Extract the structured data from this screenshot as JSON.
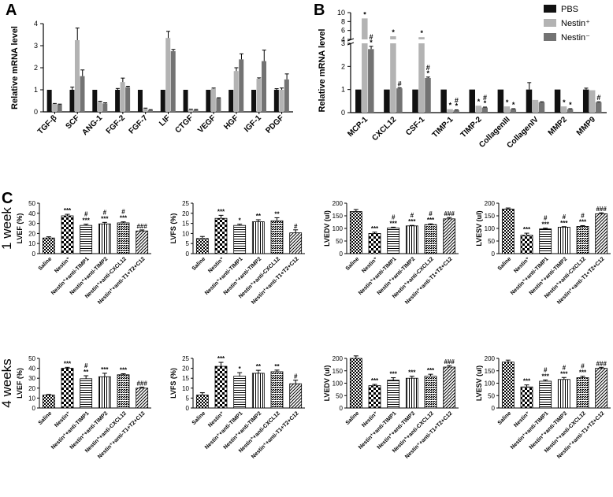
{
  "chart_data": [
    {
      "id": "A",
      "type": "bar",
      "panel_label": "A",
      "ylabel": "Relative mRNA level",
      "ylim": [
        0,
        4
      ],
      "yticks": [
        "0",
        "1",
        "2",
        "3",
        "4"
      ],
      "categories": [
        "TGF-β",
        "SCF",
        "ANG-1",
        "FGF-2",
        "FGF-7",
        "LIF",
        "CTGF",
        "VEGF",
        "HGF",
        "IGF-1",
        "PDGF"
      ],
      "series": [
        {
          "name": "PBS",
          "color": "#111111",
          "values": [
            1,
            1,
            1,
            1,
            1,
            1,
            1,
            1,
            1,
            1,
            1
          ],
          "errors": [
            0,
            0.12,
            0,
            0.06,
            0,
            0,
            0,
            0,
            0,
            0,
            0.05
          ]
        },
        {
          "name": "Nestin+",
          "color": "#b3b3b3",
          "values": [
            0.36,
            3.25,
            0.45,
            1.35,
            0.15,
            3.35,
            0.1,
            1.05,
            1.85,
            1.5,
            1.0
          ],
          "errors": [
            0.02,
            0.55,
            0.03,
            0.18,
            0.02,
            0.3,
            0.02,
            0.03,
            0.15,
            0.04,
            0.08
          ]
        },
        {
          "name": "Nestin−",
          "color": "#737373",
          "values": [
            0.33,
            1.62,
            0.38,
            1.12,
            0.08,
            2.75,
            0.09,
            0.62,
            2.38,
            2.3,
            1.47
          ],
          "errors": [
            0.02,
            0.28,
            0.03,
            0.04,
            0.02,
            0.08,
            0.02,
            0.02,
            0.25,
            0.5,
            0.25
          ]
        }
      ]
    },
    {
      "id": "B",
      "type": "bar",
      "panel_label": "B",
      "ylabel": "Relative mRNA level",
      "yticks_low": [
        "0",
        "1",
        "2",
        "3"
      ],
      "yticks_high": [
        "4",
        "6",
        "8",
        "10"
      ],
      "axis_break": true,
      "categories": [
        "MCP-1",
        "CXCL12",
        "CSF-1",
        "TIMP-1",
        "TIMP-2",
        "CollagenIII",
        "CollagenIV",
        "MMP2",
        "MMP9"
      ],
      "legend": [
        "PBS",
        "Nestin⁺",
        "Nestin⁻"
      ],
      "series": [
        {
          "name": "PBS",
          "color": "#111111",
          "values": [
            1,
            1,
            1,
            1,
            1,
            1,
            1,
            1,
            1
          ],
          "errors": [
            0,
            0,
            0,
            0,
            0,
            0,
            0.3,
            0,
            0.06
          ]
        },
        {
          "name": "Nestin+",
          "color": "#b3b3b3",
          "values": [
            8.7,
            4.7,
            4.5,
            0.15,
            0.3,
            0.27,
            0.55,
            0.27,
            0.97
          ]
        },
        {
          "name": "Nestin−",
          "color": "#737373",
          "values": [
            2.75,
            1.05,
            1.5,
            0.1,
            0.22,
            0.15,
            0.45,
            0.15,
            0.45
          ],
          "errors": [
            0.12,
            0.02,
            0.04,
            0.02,
            0.02,
            0.02,
            0.02,
            0.02,
            0.02
          ]
        }
      ],
      "annotations": [
        {
          "cat": 0,
          "series": 1,
          "marks": [
            "*"
          ]
        },
        {
          "cat": 0,
          "series": 2,
          "marks": [
            "#",
            "*"
          ]
        },
        {
          "cat": 1,
          "series": 1,
          "marks": [
            "*"
          ]
        },
        {
          "cat": 1,
          "series": 2,
          "marks": [
            "#"
          ]
        },
        {
          "cat": 2,
          "series": 1,
          "marks": [
            "*"
          ]
        },
        {
          "cat": 2,
          "series": 2,
          "marks": [
            "#",
            "*"
          ]
        },
        {
          "cat": 3,
          "series": 1,
          "marks": [
            "*"
          ]
        },
        {
          "cat": 3,
          "series": 2,
          "marks": [
            "#",
            "*"
          ]
        },
        {
          "cat": 4,
          "series": 1,
          "marks": [
            "*"
          ]
        },
        {
          "cat": 4,
          "series": 2,
          "marks": [
            "#",
            "*"
          ]
        },
        {
          "cat": 5,
          "series": 1,
          "marks": [
            "*"
          ]
        },
        {
          "cat": 5,
          "series": 2,
          "marks": [
            "*"
          ]
        },
        {
          "cat": 7,
          "series": 1,
          "marks": [
            "*"
          ]
        },
        {
          "cat": 7,
          "series": 2,
          "marks": [
            "*"
          ]
        },
        {
          "cat": 8,
          "series": 2,
          "marks": [
            "#"
          ]
        }
      ]
    }
  ],
  "panelC": {
    "label": "C",
    "rows": [
      "1 week",
      "4 weeks"
    ],
    "groups": [
      "Saline",
      "Nestin⁺",
      "Nestin⁺+anti-TIMP1",
      "Nestin⁺+anti-TIMP2",
      "Nestin⁺+anti-CXCL12",
      "Nestin⁺+anti-T1+T2+C12"
    ],
    "charts": [
      {
        "row": 0,
        "ylabel": "LVEF (%)",
        "yticks": [
          "0",
          "10",
          "20",
          "30",
          "40",
          "50"
        ],
        "ymax": 50,
        "values": [
          15.5,
          37.5,
          28,
          29.5,
          30.5,
          22.5
        ],
        "errors": [
          1.2,
          1.5,
          1.2,
          1.5,
          1.0,
          1.0
        ],
        "sig": [
          [],
          [
            "***"
          ],
          [
            "#",
            "***"
          ],
          [
            "#",
            "***"
          ],
          [
            "#",
            "***"
          ],
          [
            "###"
          ]
        ]
      },
      {
        "row": 0,
        "ylabel": "LVFS (%)",
        "yticks": [
          "0",
          "5",
          "10",
          "15",
          "20",
          "25"
        ],
        "ymax": 25,
        "values": [
          7.5,
          17.5,
          14,
          15.8,
          16.3,
          10.3
        ],
        "errors": [
          1.0,
          1.5,
          0.6,
          1.0,
          1.5,
          1.5
        ],
        "sig": [
          [],
          [
            "***"
          ],
          [
            "*"
          ],
          [
            "**"
          ],
          [
            "**"
          ],
          [
            "#"
          ]
        ]
      },
      {
        "row": 0,
        "ylabel": "LVEDV (ul)",
        "yticks": [
          "0",
          "50",
          "100",
          "150",
          "200"
        ],
        "ymax": 200,
        "values": [
          167,
          80,
          102,
          110,
          115,
          138
        ],
        "errors": [
          8,
          5,
          3,
          2,
          3,
          5
        ],
        "sig": [
          [],
          [
            "***"
          ],
          [
            "#",
            "***"
          ],
          [
            "#",
            "***"
          ],
          [
            "#",
            "***"
          ],
          [
            "###"
          ]
        ]
      },
      {
        "row": 0,
        "ylabel": "LVESV (ul)",
        "yticks": [
          "0",
          "50",
          "100",
          "150",
          "200"
        ],
        "ymax": 200,
        "values": [
          177,
          73,
          98,
          105,
          108,
          158
        ],
        "errors": [
          4,
          8,
          3,
          2,
          3,
          4
        ],
        "sig": [
          [],
          [
            "***"
          ],
          [
            "#",
            "***"
          ],
          [
            "#",
            "***"
          ],
          [
            "#",
            "***"
          ],
          [
            "###"
          ]
        ]
      },
      {
        "row": 1,
        "ylabel": "LVEF (%)",
        "yticks": [
          "0",
          "10",
          "20",
          "30",
          "40",
          "50"
        ],
        "ymax": 50,
        "values": [
          13,
          40,
          29.5,
          31.5,
          33.5,
          20
        ],
        "errors": [
          0.6,
          1.0,
          3.0,
          3.5,
          1.0,
          1.0
        ],
        "sig": [
          [],
          [
            "***"
          ],
          [
            "#",
            "**"
          ],
          [
            "***"
          ],
          [
            "***"
          ],
          [
            "###"
          ]
        ]
      },
      {
        "row": 1,
        "ylabel": "LVFS (%)",
        "yticks": [
          "0",
          "5",
          "10",
          "15",
          "20",
          "25"
        ],
        "ymax": 25,
        "values": [
          6.5,
          21,
          16,
          17.5,
          18.3,
          12.2
        ],
        "errors": [
          1.2,
          2.0,
          1.8,
          1.5,
          0.8,
          1.8
        ],
        "sig": [
          [],
          [
            "***"
          ],
          [
            "*"
          ],
          [
            "**"
          ],
          [
            "**"
          ],
          [
            "#"
          ]
        ]
      },
      {
        "row": 1,
        "ylabel": "LVEDV (ul)",
        "yticks": [
          "0",
          "50",
          "100",
          "150",
          "200"
        ],
        "ymax": 200,
        "values": [
          200,
          90,
          112,
          120,
          128,
          165
        ],
        "errors": [
          10,
          5,
          10,
          8,
          8,
          6
        ],
        "sig": [
          [],
          [
            "***"
          ],
          [
            "***"
          ],
          [
            "***"
          ],
          [
            "***"
          ],
          [
            "###"
          ]
        ]
      },
      {
        "row": 1,
        "ylabel": "LVESV (ul)",
        "yticks": [
          "0",
          "50",
          "100",
          "150",
          "200"
        ],
        "ymax": 200,
        "values": [
          185,
          85,
          108,
          115,
          122,
          160
        ],
        "errors": [
          8,
          8,
          5,
          8,
          6,
          4
        ],
        "sig": [
          [],
          [
            "***"
          ],
          [
            "#",
            "***"
          ],
          [
            "#",
            "***"
          ],
          [
            "#",
            "***"
          ],
          [
            "###"
          ]
        ]
      }
    ]
  }
}
